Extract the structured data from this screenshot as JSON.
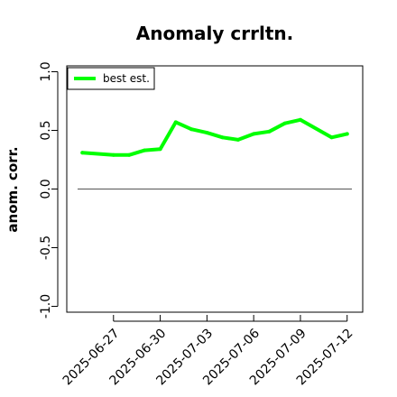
{
  "chart_data": {
    "type": "line",
    "title": "Anomaly crrltn.",
    "xlabel": "",
    "ylabel": "anom. corr.",
    "x_tick_labels": [
      "2025-06-27",
      "2025-06-30",
      "2025-07-03",
      "2025-07-06",
      "2025-07-09",
      "2025-07-12"
    ],
    "xlim": [
      "2025-06-24",
      "2025-07-13"
    ],
    "ylim": [
      -1.05,
      1.05
    ],
    "y_ticks": [
      -1.0,
      -0.5,
      0.0,
      0.5,
      1.0
    ],
    "y_tick_labels": [
      "-1.0",
      "-0.5",
      "0.0",
      "0.5",
      "1.0"
    ],
    "reference_line": 0.0,
    "grid": false,
    "legend_position": "top-left",
    "series": [
      {
        "name": "best est.",
        "color": "#00ff00",
        "x": [
          "2025-06-25",
          "2025-06-27",
          "2025-06-28",
          "2025-06-29",
          "2025-06-30",
          "2025-07-01",
          "2025-07-02",
          "2025-07-03",
          "2025-07-04",
          "2025-07-05",
          "2025-07-06",
          "2025-07-07",
          "2025-07-08",
          "2025-07-09",
          "2025-07-11",
          "2025-07-12"
        ],
        "values": [
          0.31,
          0.29,
          0.29,
          0.33,
          0.34,
          0.57,
          0.51,
          0.48,
          0.44,
          0.42,
          0.47,
          0.49,
          0.56,
          0.59,
          0.44,
          0.47
        ]
      }
    ]
  }
}
